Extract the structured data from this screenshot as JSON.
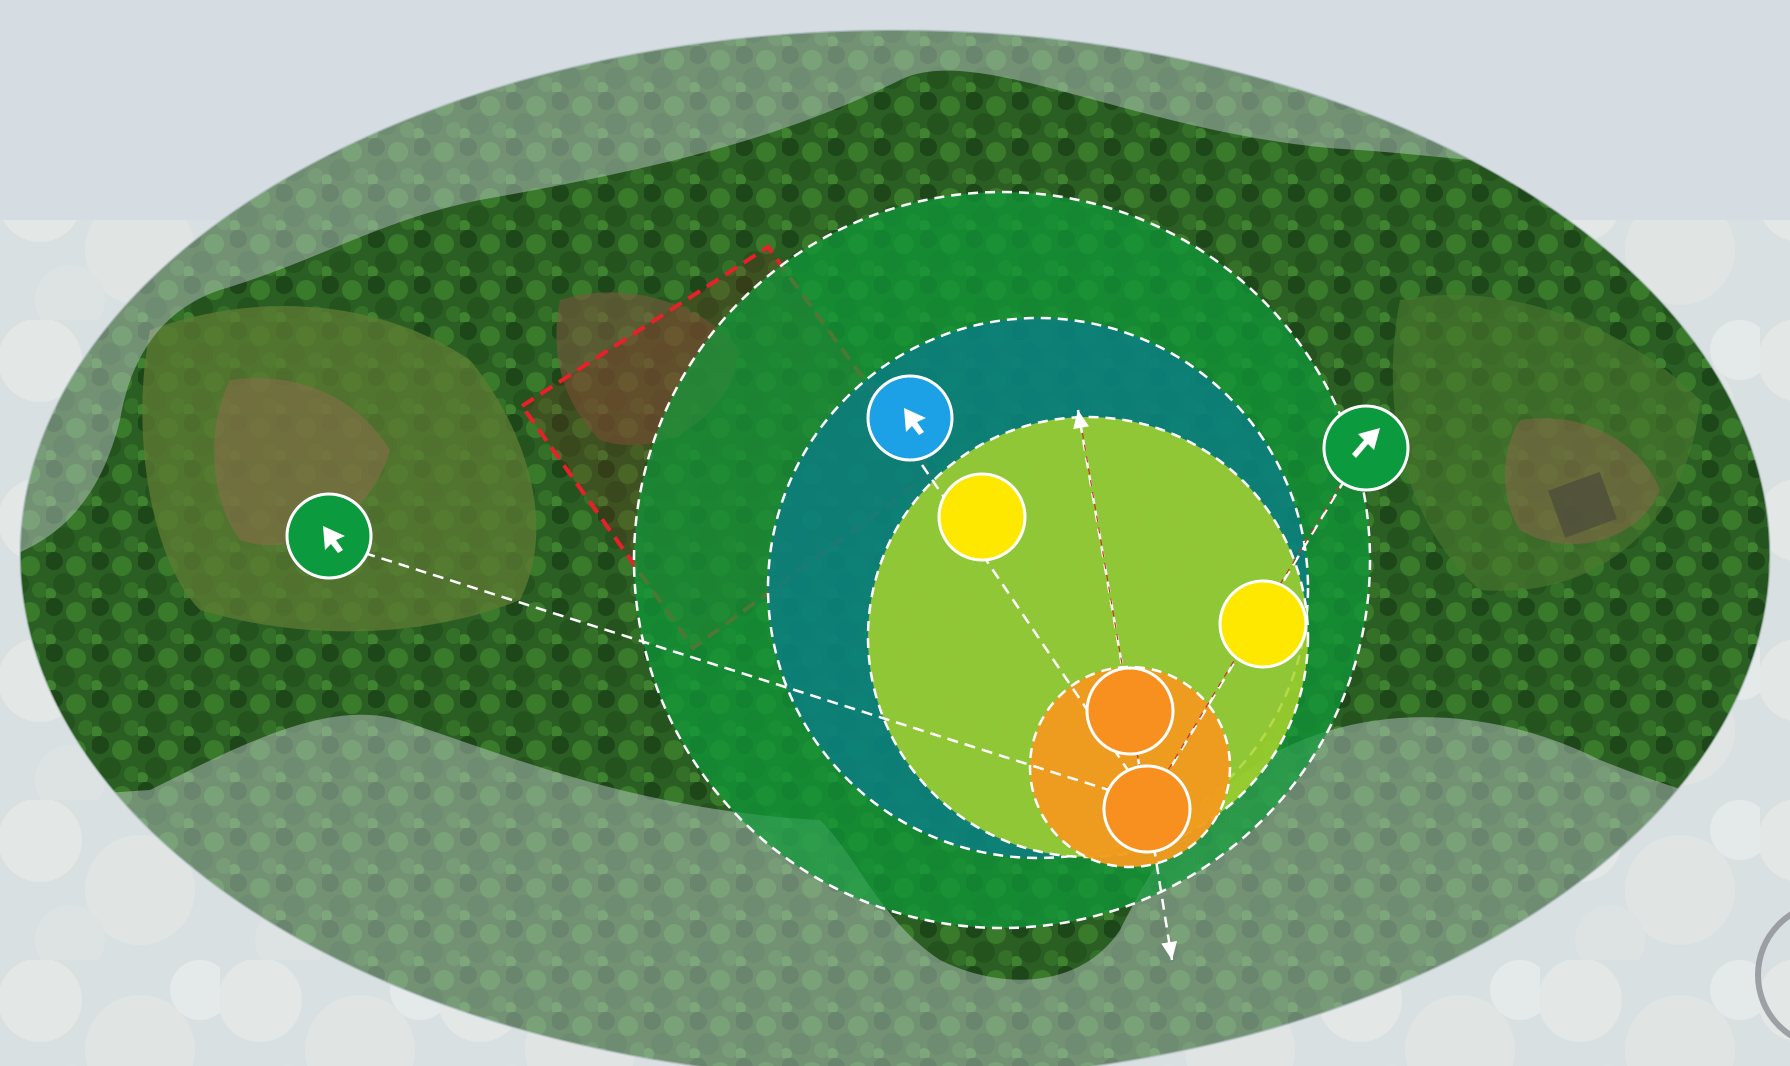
{
  "map": {
    "colors": {
      "sky": "#d5dde2",
      "cloud": "#eef0ec",
      "forest_dark": "#1f4a1c",
      "forest_mid": "#2f6b26",
      "clearing": "#6f8a3c",
      "soil": "#8a6a4c",
      "haze": "#c9d3d8",
      "ring_outer": "#0f9a3a",
      "ring_mid": "#0a7a8c",
      "ring_inner": "#a6d12c",
      "ring_core": "#f39a1e",
      "plot_outline": "#e8202a",
      "dash": "#ffffff"
    },
    "zones": [
      {
        "name": "outer-zone",
        "color": "#0f9a3a",
        "opacity": 0.72
      },
      {
        "name": "middle-zone",
        "color": "#0a7b8f",
        "opacity": 0.72
      },
      {
        "name": "inner-zone",
        "color": "#a8d32d",
        "opacity": 0.85
      },
      {
        "name": "core-zone",
        "color": "#f39a1e",
        "opacity": 0.95
      }
    ],
    "markers": [
      {
        "name": "marker-blue",
        "color": "#1ca0e6",
        "icon": "cursor-arrow-icon",
        "ring": true
      },
      {
        "name": "marker-green-left",
        "color": "#0b9b3e",
        "icon": "cursor-arrow-icon",
        "ring": true
      },
      {
        "name": "marker-green-right",
        "color": "#0b9b3e",
        "icon": "cursor-arrow-icon",
        "ring": true
      },
      {
        "name": "marker-yellow-upper",
        "color": "#ffe800",
        "icon": "",
        "ring": true
      },
      {
        "name": "marker-yellow-right",
        "color": "#ffe800",
        "icon": "",
        "ring": true
      },
      {
        "name": "marker-orange-upper",
        "color": "#f7901e",
        "icon": "",
        "ring": true
      },
      {
        "name": "marker-orange-lower",
        "color": "#f7901e",
        "icon": "",
        "ring": true
      }
    ],
    "connectors": [
      {
        "name": "connector-blue-to-core",
        "color": "#ffffff"
      },
      {
        "name": "connector-green-left-to-core",
        "color": "#ffffff"
      },
      {
        "name": "connector-green-right-to-core",
        "color": "#ffffff"
      },
      {
        "name": "connector-core-to-top",
        "color": "#ffffff"
      },
      {
        "name": "connector-core-to-bottom",
        "color": "#ffffff"
      }
    ]
  }
}
